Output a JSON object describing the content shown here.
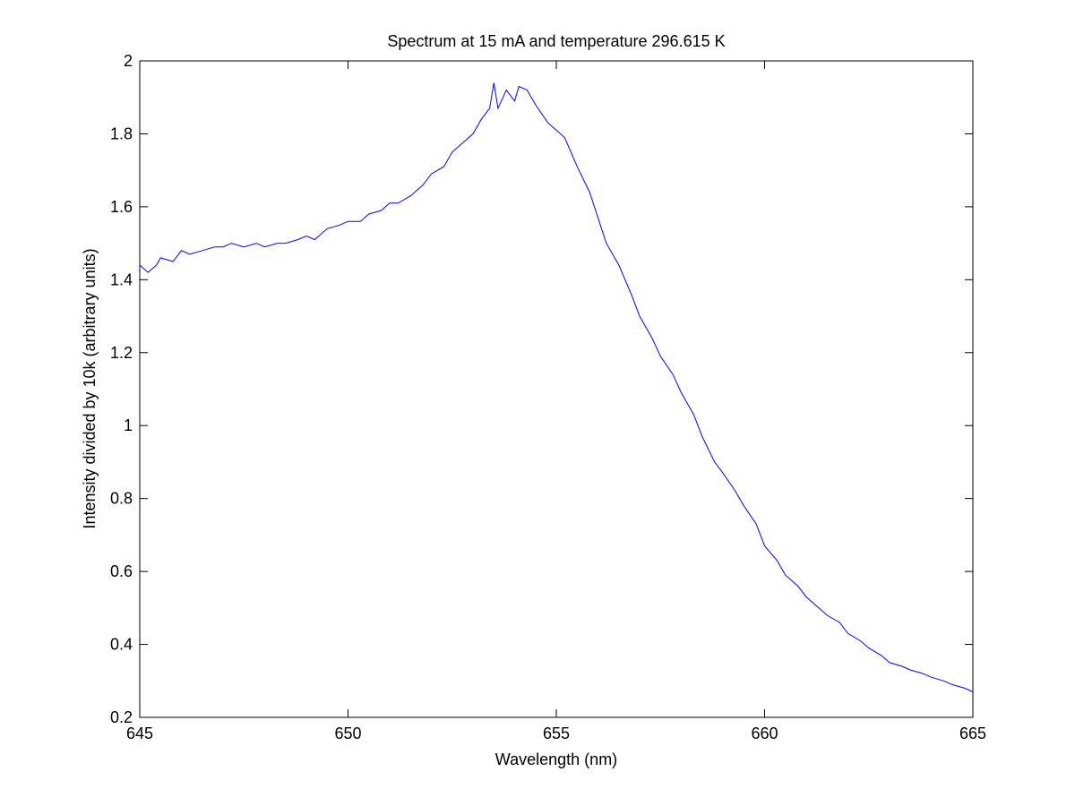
{
  "chart_data": {
    "type": "line",
    "title": "Spectrum at 15 mA and temperature 296.615 K",
    "xlabel": "Wavelength (nm)",
    "ylabel": "Intensity divided by 10k (arbitrary units)",
    "xlim": [
      645,
      665
    ],
    "ylim": [
      0.2,
      2
    ],
    "xticks": [
      645,
      650,
      655,
      660,
      665
    ],
    "xtick_labels": [
      "645",
      "650",
      "655",
      "660",
      "665"
    ],
    "yticks": [
      0.2,
      0.4,
      0.6,
      0.8,
      1.0,
      1.2,
      1.4,
      1.6,
      1.8,
      2.0
    ],
    "ytick_labels": [
      "0.2",
      "0.4",
      "0.6",
      "0.8",
      "1",
      "1.2",
      "1.4",
      "1.6",
      "1.8",
      "2"
    ],
    "grid": false,
    "line_color": "#0000ff",
    "series": [
      {
        "x": [
          645.0,
          645.2,
          645.4,
          645.5,
          645.8,
          646.0,
          646.2,
          646.5,
          646.8,
          647.0,
          647.2,
          647.5,
          647.8,
          648.0,
          648.3,
          648.5,
          648.8,
          649.0,
          649.2,
          649.5,
          649.8,
          650.0,
          650.3,
          650.5,
          650.8,
          651.0,
          651.2,
          651.5,
          651.8,
          652.0,
          652.3,
          652.5,
          652.8,
          653.0,
          653.2,
          653.4,
          653.5,
          653.6,
          653.8,
          654.0,
          654.1,
          654.3,
          654.5,
          654.8,
          655.0,
          655.2,
          655.5,
          655.8,
          656.0,
          656.2,
          656.5,
          656.8,
          657.0,
          657.3,
          657.5,
          657.8,
          658.0,
          658.3,
          658.5,
          658.8,
          659.0,
          659.3,
          659.5,
          659.8,
          660.0,
          660.3,
          660.5,
          660.8,
          661.0,
          661.3,
          661.5,
          661.8,
          662.0,
          662.3,
          662.5,
          662.8,
          663.0,
          663.3,
          663.5,
          663.8,
          664.0,
          664.3,
          664.5,
          664.8,
          665.0
        ],
        "y": [
          1.44,
          1.42,
          1.44,
          1.46,
          1.45,
          1.48,
          1.47,
          1.48,
          1.49,
          1.49,
          1.5,
          1.49,
          1.5,
          1.49,
          1.5,
          1.5,
          1.51,
          1.52,
          1.51,
          1.54,
          1.55,
          1.56,
          1.56,
          1.58,
          1.59,
          1.61,
          1.61,
          1.63,
          1.66,
          1.69,
          1.71,
          1.75,
          1.78,
          1.8,
          1.84,
          1.87,
          1.94,
          1.87,
          1.92,
          1.89,
          1.93,
          1.92,
          1.88,
          1.83,
          1.81,
          1.79,
          1.71,
          1.64,
          1.57,
          1.5,
          1.44,
          1.36,
          1.3,
          1.24,
          1.19,
          1.14,
          1.09,
          1.03,
          0.97,
          0.9,
          0.87,
          0.82,
          0.78,
          0.73,
          0.67,
          0.63,
          0.59,
          0.56,
          0.53,
          0.5,
          0.48,
          0.46,
          0.43,
          0.41,
          0.39,
          0.37,
          0.35,
          0.34,
          0.33,
          0.32,
          0.31,
          0.3,
          0.29,
          0.28,
          0.27
        ]
      }
    ]
  }
}
